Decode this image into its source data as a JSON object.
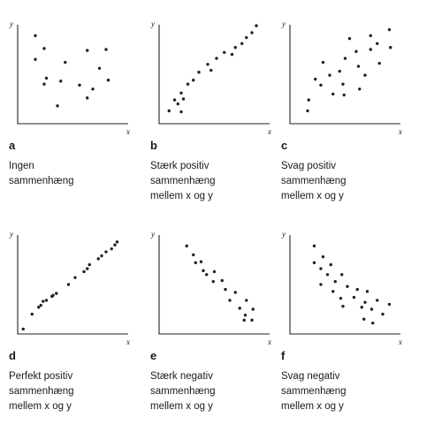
{
  "chart_data": [
    {
      "type": "scatter",
      "letter": "a",
      "xlabel": "x",
      "ylabel": "y",
      "description": [
        "Ingen",
        "sammenhæng"
      ],
      "xlim": [
        0,
        100
      ],
      "ylim": [
        0,
        100
      ],
      "points": [
        [
          16,
          89
        ],
        [
          24,
          76
        ],
        [
          16,
          65
        ],
        [
          63,
          74
        ],
        [
          80,
          75
        ],
        [
          43,
          62
        ],
        [
          74,
          56
        ],
        [
          24,
          40
        ],
        [
          39,
          43
        ],
        [
          56,
          39
        ],
        [
          26,
          46
        ],
        [
          82,
          44
        ],
        [
          68,
          35
        ],
        [
          36,
          18
        ],
        [
          63,
          26
        ]
      ]
    },
    {
      "type": "scatter",
      "letter": "b",
      "xlabel": "x",
      "ylabel": "y",
      "description": [
        "Stærk positiv",
        "sammenhæng",
        "mellem x og y"
      ],
      "xlim": [
        0,
        100
      ],
      "ylim": [
        0,
        100
      ],
      "points": [
        [
          88,
          99
        ],
        [
          84,
          92
        ],
        [
          79,
          87
        ],
        [
          75,
          81
        ],
        [
          69,
          77
        ],
        [
          59,
          72
        ],
        [
          66,
          70
        ],
        [
          52,
          66
        ],
        [
          44,
          60
        ],
        [
          47,
          54
        ],
        [
          36,
          52
        ],
        [
          31,
          44
        ],
        [
          26,
          40
        ],
        [
          20,
          31
        ],
        [
          22,
          25
        ],
        [
          14,
          24
        ],
        [
          17,
          20
        ],
        [
          9,
          13
        ],
        [
          20,
          12
        ]
      ]
    },
    {
      "type": "scatter",
      "letter": "c",
      "xlabel": "x",
      "ylabel": "y",
      "description": [
        "Svag positiv",
        "sammenhæng",
        "mellem x og y"
      ],
      "xlim": [
        0,
        100
      ],
      "ylim": [
        0,
        100
      ],
      "points": [
        [
          90,
          95
        ],
        [
          73,
          89
        ],
        [
          54,
          86
        ],
        [
          79,
          81
        ],
        [
          91,
          77
        ],
        [
          60,
          73
        ],
        [
          73,
          75
        ],
        [
          50,
          66
        ],
        [
          30,
          62
        ],
        [
          81,
          61
        ],
        [
          62,
          58
        ],
        [
          68,
          49
        ],
        [
          45,
          53
        ],
        [
          36,
          49
        ],
        [
          23,
          45
        ],
        [
          48,
          40
        ],
        [
          63,
          35
        ],
        [
          28,
          39
        ],
        [
          39,
          30
        ],
        [
          49,
          29
        ],
        [
          17,
          24
        ],
        [
          16,
          13
        ]
      ]
    },
    {
      "type": "scatter",
      "letter": "d",
      "xlabel": "x",
      "ylabel": "y",
      "description": [
        "Perfekt positiv",
        "sammenhæng",
        "mellem x og y"
      ],
      "xlim": [
        0,
        100
      ],
      "ylim": [
        0,
        100
      ],
      "points": [
        [
          90,
          93
        ],
        [
          88,
          90
        ],
        [
          85,
          86
        ],
        [
          80,
          83
        ],
        [
          76,
          79
        ],
        [
          73,
          76
        ],
        [
          65,
          70
        ],
        [
          63,
          66
        ],
        [
          60,
          63
        ],
        [
          52,
          57
        ],
        [
          46,
          50
        ],
        [
          35,
          41
        ],
        [
          32,
          39
        ],
        [
          31,
          38
        ],
        [
          26,
          34
        ],
        [
          23,
          33
        ],
        [
          21,
          29
        ],
        [
          19,
          27
        ],
        [
          13,
          20
        ],
        [
          5,
          5
        ]
      ]
    },
    {
      "type": "scatter",
      "letter": "e",
      "xlabel": "x",
      "ylabel": "y",
      "description": [
        "Stærk negativ",
        "sammenhæng",
        "mellem x og y"
      ],
      "xlim": [
        0,
        100
      ],
      "ylim": [
        0,
        100
      ],
      "points": [
        [
          25,
          89
        ],
        [
          31,
          80
        ],
        [
          38,
          73
        ],
        [
          33,
          72
        ],
        [
          40,
          64
        ],
        [
          50,
          63
        ],
        [
          43,
          60
        ],
        [
          57,
          54
        ],
        [
          49,
          53
        ],
        [
          60,
          45
        ],
        [
          69,
          42
        ],
        [
          64,
          34
        ],
        [
          79,
          34
        ],
        [
          73,
          26
        ],
        [
          85,
          25
        ],
        [
          78,
          19
        ],
        [
          84,
          14
        ],
        [
          77,
          14
        ]
      ]
    },
    {
      "type": "scatter",
      "letter": "f",
      "xlabel": "x",
      "ylabel": "y",
      "description": [
        "Svag negativ",
        "sammenhæng",
        "mellem x og y"
      ],
      "xlim": [
        0,
        100
      ],
      "ylim": [
        0,
        100
      ],
      "points": [
        [
          22,
          89
        ],
        [
          30,
          78
        ],
        [
          22,
          72
        ],
        [
          37,
          70
        ],
        [
          28,
          66
        ],
        [
          34,
          60
        ],
        [
          47,
          60
        ],
        [
          41,
          53
        ],
        [
          28,
          50
        ],
        [
          52,
          48
        ],
        [
          39,
          43
        ],
        [
          61,
          45
        ],
        [
          70,
          43
        ],
        [
          46,
          36
        ],
        [
          58,
          37
        ],
        [
          68,
          32
        ],
        [
          79,
          34
        ],
        [
          90,
          30
        ],
        [
          48,
          28
        ],
        [
          65,
          27
        ],
        [
          74,
          25
        ],
        [
          84,
          20
        ],
        [
          67,
          15
        ],
        [
          75,
          11
        ]
      ]
    }
  ]
}
